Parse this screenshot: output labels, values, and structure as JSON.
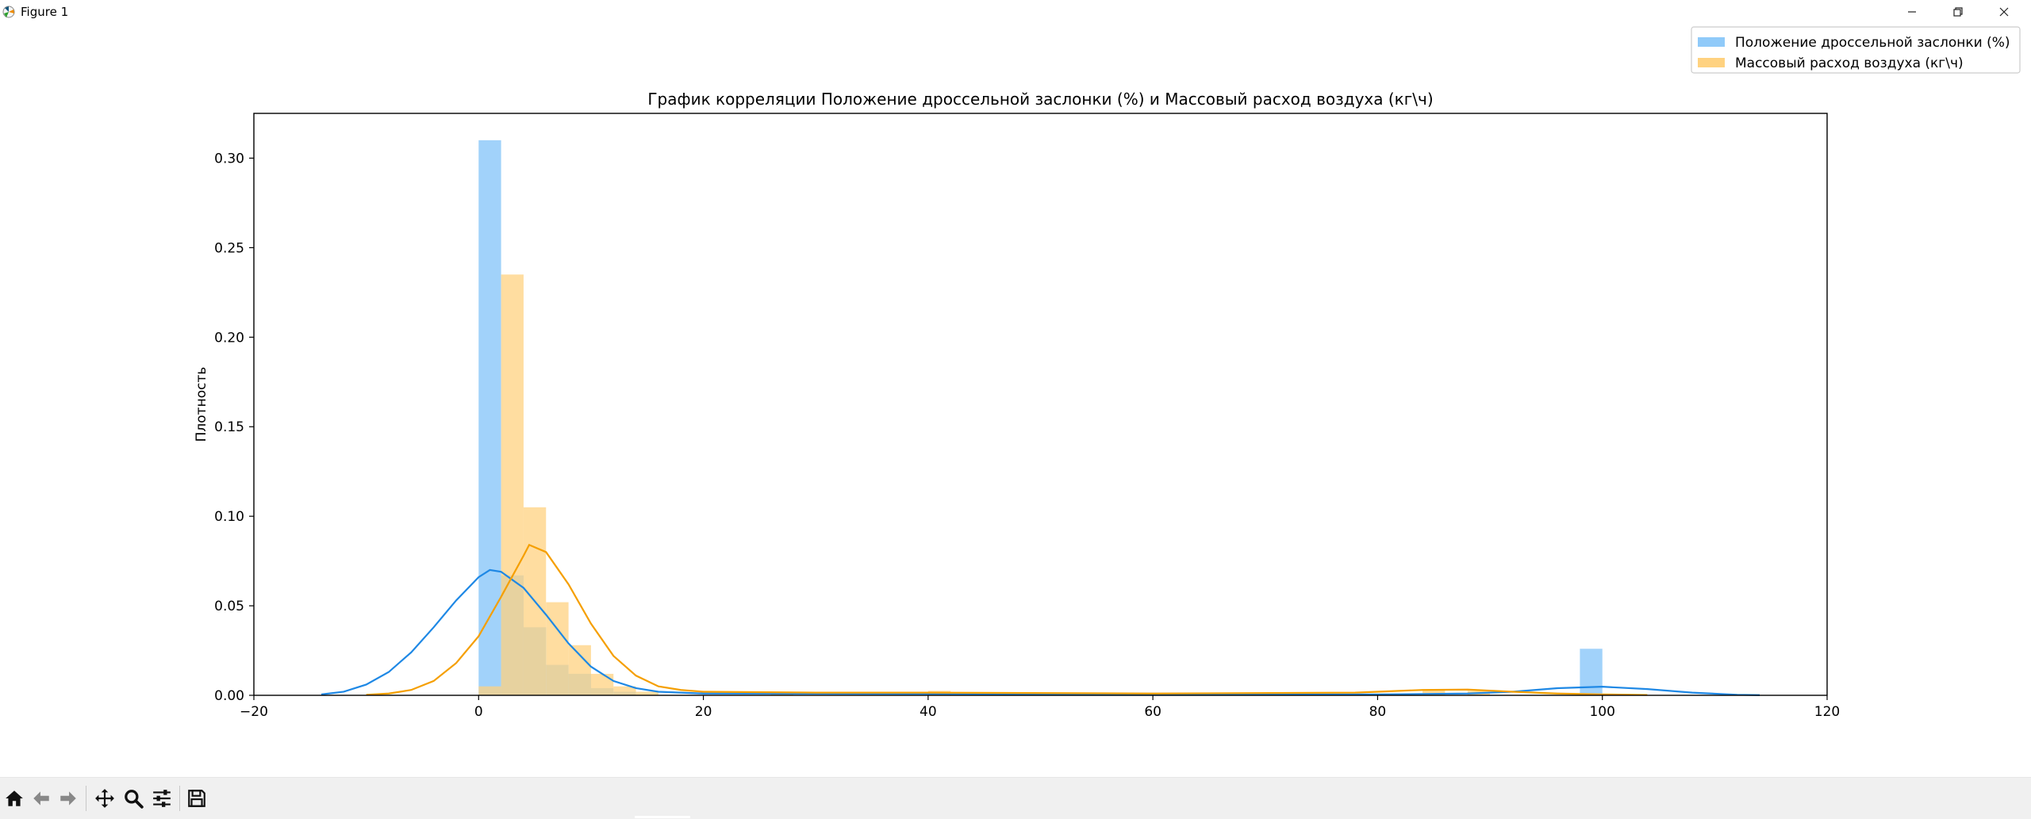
{
  "window": {
    "title": "Figure 1",
    "controls": [
      "minimize",
      "restore",
      "close"
    ]
  },
  "toolbar": {
    "buttons": [
      "home-icon",
      "back-arrow-icon",
      "forward-arrow-icon",
      "pan-icon",
      "zoom-icon",
      "configure-subplots-icon",
      "save-icon"
    ]
  },
  "chart_data": {
    "type": "histogram",
    "title": "График корреляции Положение дроссельной заслонки (%) и Массовый расход воздуха (кг\\ч)",
    "xlabel": "",
    "ylabel": "Плотность",
    "xlim": [
      -20,
      120
    ],
    "ylim": [
      0,
      0.325
    ],
    "xticks": [
      -20,
      0,
      20,
      40,
      60,
      80,
      100,
      120
    ],
    "xtick_labels": [
      "−20",
      "0",
      "20",
      "40",
      "60",
      "80",
      "100",
      "120"
    ],
    "yticks": [
      0.0,
      0.05,
      0.1,
      0.15,
      0.2,
      0.25,
      0.3
    ],
    "ytick_labels": [
      "0.00",
      "0.05",
      "0.10",
      "0.15",
      "0.20",
      "0.25",
      "0.30"
    ],
    "grid": false,
    "legend_position": "top-right (outside axes)",
    "series": [
      {
        "name": "Положение дроссельной заслонки (%)",
        "color": "#1e88e5",
        "bar_color": "#90caf9",
        "bins": [
          {
            "x0": 0,
            "x1": 2,
            "density": 0.31
          },
          {
            "x0": 2,
            "x1": 4,
            "density": 0.067
          },
          {
            "x0": 4,
            "x1": 6,
            "density": 0.038
          },
          {
            "x0": 6,
            "x1": 8,
            "density": 0.017
          },
          {
            "x0": 8,
            "x1": 10,
            "density": 0.012
          },
          {
            "x0": 10,
            "x1": 12,
            "density": 0.004
          },
          {
            "x0": 12,
            "x1": 14,
            "density": 0.002
          },
          {
            "x0": 98,
            "x1": 100,
            "density": 0.026
          }
        ],
        "kde": [
          [
            -14,
            0.0005
          ],
          [
            -12,
            0.002
          ],
          [
            -10,
            0.006
          ],
          [
            -8,
            0.013
          ],
          [
            -6,
            0.024
          ],
          [
            -4,
            0.038
          ],
          [
            -2,
            0.053
          ],
          [
            0,
            0.066
          ],
          [
            1,
            0.07
          ],
          [
            2,
            0.069
          ],
          [
            4,
            0.06
          ],
          [
            6,
            0.045
          ],
          [
            8,
            0.029
          ],
          [
            10,
            0.016
          ],
          [
            12,
            0.008
          ],
          [
            14,
            0.004
          ],
          [
            16,
            0.002
          ],
          [
            20,
            0.001
          ],
          [
            40,
            0.0008
          ],
          [
            60,
            0.0006
          ],
          [
            80,
            0.0005
          ],
          [
            88,
            0.001
          ],
          [
            92,
            0.002
          ],
          [
            96,
            0.004
          ],
          [
            100,
            0.0048
          ],
          [
            104,
            0.0035
          ],
          [
            108,
            0.0015
          ],
          [
            112,
            0.0003
          ],
          [
            114,
            0.0001
          ]
        ]
      },
      {
        "name": "Массовый расход воздуха (кг\\ч)",
        "color": "#f59f00",
        "bar_color": "#ffd280",
        "bins": [
          {
            "x0": 0,
            "x1": 2,
            "density": 0.005
          },
          {
            "x0": 2,
            "x1": 4,
            "density": 0.235
          },
          {
            "x0": 4,
            "x1": 6,
            "density": 0.105
          },
          {
            "x0": 6,
            "x1": 8,
            "density": 0.052
          },
          {
            "x0": 8,
            "x1": 10,
            "density": 0.028
          },
          {
            "x0": 10,
            "x1": 12,
            "density": 0.012
          },
          {
            "x0": 12,
            "x1": 14,
            "density": 0.005
          },
          {
            "x0": 14,
            "x1": 16,
            "density": 0.002
          },
          {
            "x0": 26,
            "x1": 28,
            "density": 0.001
          },
          {
            "x0": 40,
            "x1": 42,
            "density": 0.0025
          },
          {
            "x0": 84,
            "x1": 86,
            "density": 0.003
          },
          {
            "x0": 88,
            "x1": 90,
            "density": 0.0025
          }
        ],
        "kde": [
          [
            -10,
            0.0003
          ],
          [
            -8,
            0.001
          ],
          [
            -6,
            0.003
          ],
          [
            -4,
            0.008
          ],
          [
            -2,
            0.018
          ],
          [
            0,
            0.033
          ],
          [
            2,
            0.055
          ],
          [
            4,
            0.078
          ],
          [
            4.5,
            0.084
          ],
          [
            6,
            0.08
          ],
          [
            8,
            0.062
          ],
          [
            10,
            0.04
          ],
          [
            12,
            0.022
          ],
          [
            14,
            0.011
          ],
          [
            16,
            0.005
          ],
          [
            18,
            0.003
          ],
          [
            20,
            0.002
          ],
          [
            30,
            0.0015
          ],
          [
            40,
            0.0015
          ],
          [
            60,
            0.001
          ],
          [
            78,
            0.0015
          ],
          [
            84,
            0.003
          ],
          [
            88,
            0.0032
          ],
          [
            92,
            0.002
          ],
          [
            96,
            0.001
          ],
          [
            100,
            0.0005
          ],
          [
            104,
            0.0002
          ]
        ]
      }
    ]
  }
}
